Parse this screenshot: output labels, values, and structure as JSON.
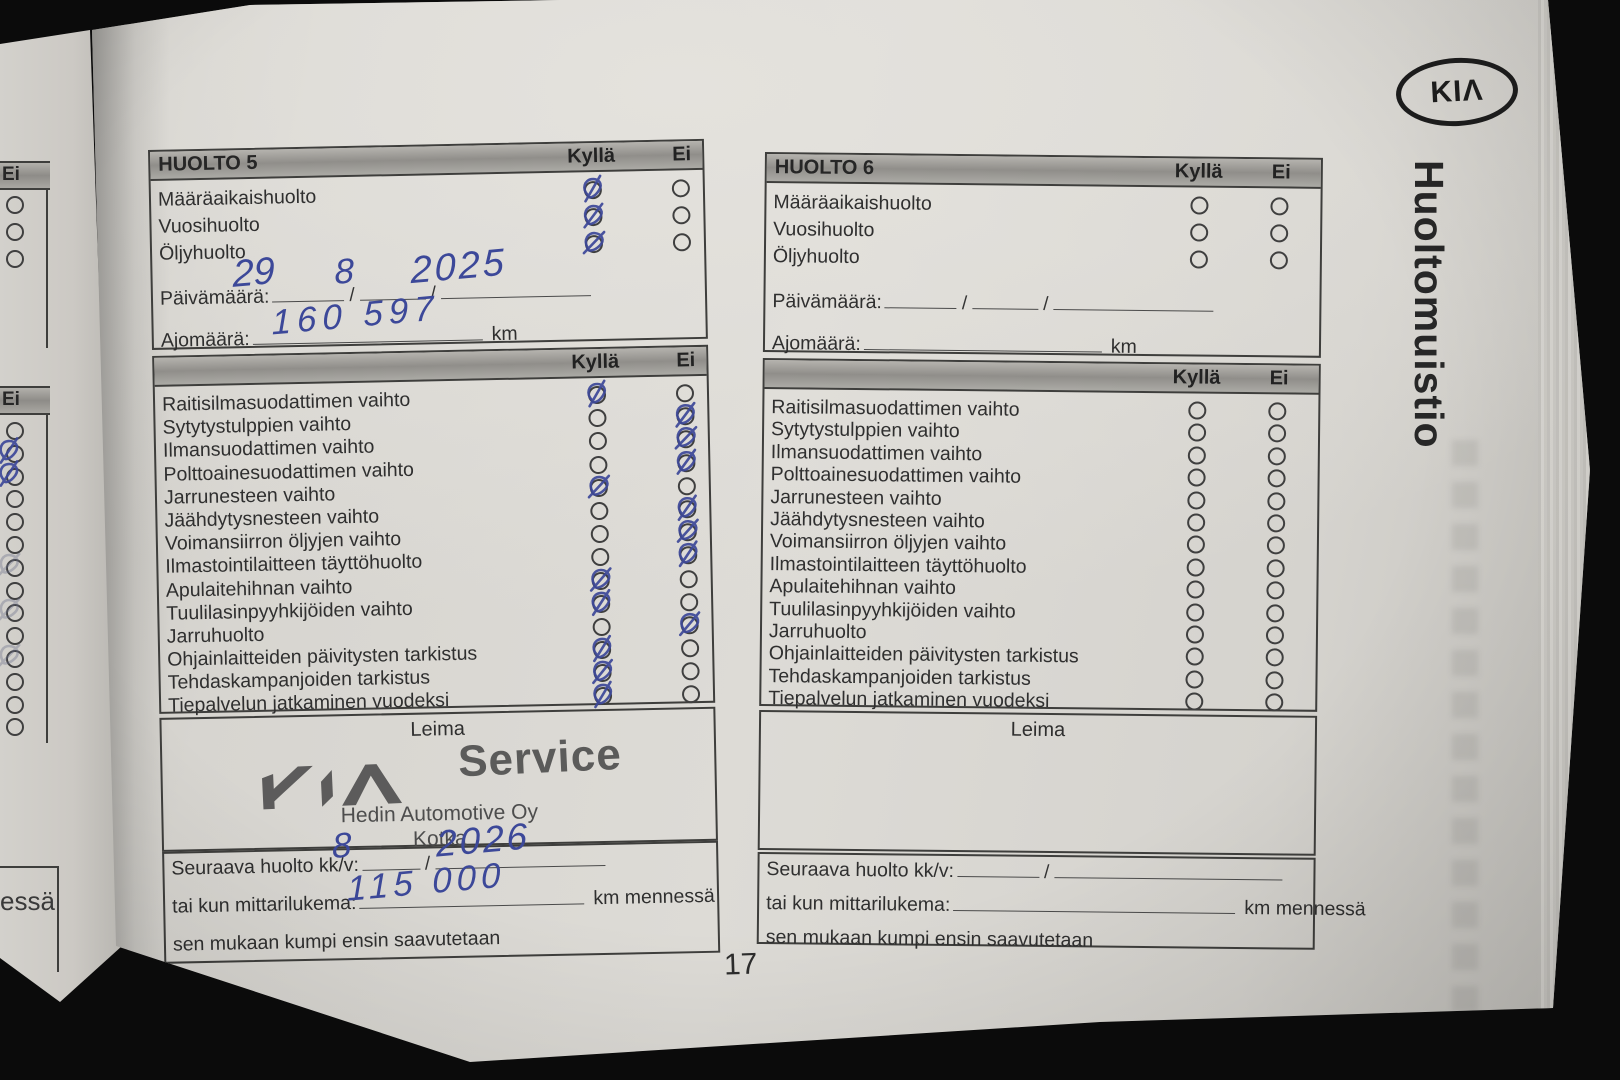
{
  "page": {
    "number": "17",
    "brand_logo": "KIΛ",
    "side_title": "Huoltomuistio"
  },
  "labels": {
    "kylla": "Kyllä",
    "ei": "Ei",
    "paivamaara": "Päivämäärä:",
    "ajomaara": "Ajomäärä:",
    "km": "km",
    "leima": "Leima",
    "seuraava": "Seuraava huolto kk/v:",
    "mittarilukema": "tai kun mittarilukema:",
    "km_mennessa": "km mennessä",
    "sen_mukaan": "sen mukaan kumpi ensin saavutetaan",
    "slash": "/"
  },
  "top_items": [
    "Määräaikaishuolto",
    "Vuosihuolto",
    "Öljyhuolto"
  ],
  "checklist_items": [
    "Raitisilmasuodattimen vaihto",
    "Sytytystulppien vaihto",
    "Ilmansuodattimen vaihto",
    "Polttoainesuodattimen vaihto",
    "Jarrunesteen vaihto",
    "Jäähdytysnesteen vaihto",
    "Voimansiirron öljyjen vaihto",
    "Ilmastointilaitteen täyttöhuolto",
    "Apulaitehihnan vaihto",
    "Tuulilasinpyyhkijöiden vaihto",
    "Jarruhuolto",
    "Ohjainlaitteiden päivitysten tarkistus",
    "Tehdaskampanjoiden tarkistus",
    "Tiepalvelun jatkaminen vuodeksi"
  ],
  "huolto5": {
    "title": "HUOLTO 5",
    "top_states": [
      "kylla",
      "kylla",
      "kylla"
    ],
    "states": [
      "kylla",
      "ei",
      "ei",
      "ei",
      "kylla",
      "ei",
      "ei",
      "ei",
      "kylla",
      "kylla",
      "ei",
      "kylla",
      "kylla",
      "kylla"
    ],
    "date": {
      "day": "29",
      "month": "8",
      "year": "2025"
    },
    "mileage": "160 597",
    "stamp": {
      "service": "Service",
      "dealer": "Hedin Automotive Oy",
      "city": "Kotka"
    },
    "next_service": {
      "month": "8",
      "year": "2026",
      "odometer": "115 000"
    }
  },
  "huolto6": {
    "title": "HUOLTO 6",
    "top_states": [
      null,
      null,
      null
    ],
    "states": [
      null,
      null,
      null,
      null,
      null,
      null,
      null,
      null,
      null,
      null,
      null,
      null,
      null,
      null
    ]
  },
  "left_page_fragment": {
    "ei_label": "Ei",
    "edge_text": "essä",
    "top_circles": 3,
    "list_circles": 14,
    "marked": [
      1,
      2
    ],
    "faint_marked": [
      6,
      8,
      10
    ]
  },
  "colors": {
    "paper": "#d8d6d1",
    "ink": "#3c4899",
    "stamp_ink": "#4b4b4b"
  }
}
